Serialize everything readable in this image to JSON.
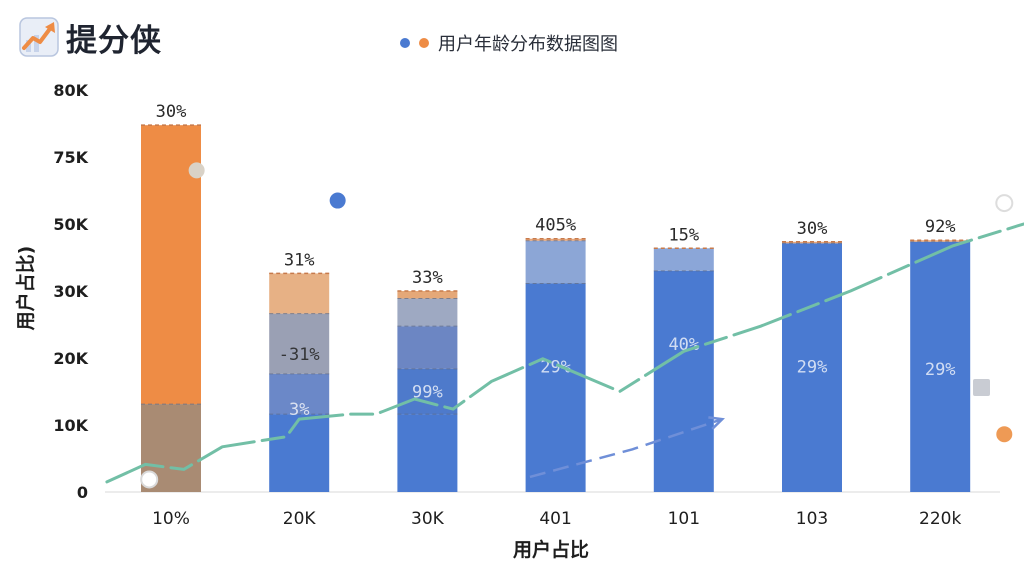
{
  "brand": {
    "name": "提分侠",
    "logo_icon": "trend-up-arrow-icon"
  },
  "colors": {
    "blue": "#4a7ad1",
    "orange": "#ee8c45",
    "trend": "#72bfa6",
    "arrow": "#6f8fd8"
  },
  "chart_data": {
    "type": "bar",
    "title": "用户年龄分布数据图图",
    "legend": {
      "placement": "top-center",
      "markers": [
        "#4a7ad1",
        "#ee8c45"
      ]
    },
    "xlabel": "用户占比",
    "ylabel": "用户占比)",
    "y_tick_labels": [
      "0",
      "10K",
      "20K",
      "30K",
      "50K",
      "75K",
      "80K"
    ],
    "categories": [
      "10%",
      "20K",
      "30K",
      "401",
      "101",
      "103",
      "220k"
    ],
    "bars": [
      {
        "category": "10%",
        "top_label": "30%",
        "inner_labels": [],
        "segments": [
          {
            "value": 17.5,
            "color": "#a98b73"
          },
          {
            "value": 55.5,
            "color": "#ee8c45"
          }
        ]
      },
      {
        "category": "20K",
        "top_label": "31%",
        "inner_labels": [
          {
            "text": "3%",
            "at": 16.5
          },
          {
            "text": "-31%",
            "at": 27.5,
            "dark": true
          }
        ],
        "segments": [
          {
            "value": 15.5,
            "color": "#4a7ad1"
          },
          {
            "value": 8.0,
            "color": "#6b88c8"
          },
          {
            "value": 12.0,
            "color": "#9aa0b4"
          },
          {
            "value": 8.0,
            "color": "#e7b185"
          }
        ]
      },
      {
        "category": "30K",
        "top_label": "33%",
        "inner_labels": [
          {
            "text": "99%",
            "at": 20.0
          }
        ],
        "segments": [
          {
            "value": 15.5,
            "color": "#4a7ad1"
          },
          {
            "value": 9.0,
            "color": "#4e7acb"
          },
          {
            "value": 8.5,
            "color": "#6c86c3"
          },
          {
            "value": 5.5,
            "color": "#9ea9c2"
          },
          {
            "value": 1.5,
            "color": "#e5a878"
          }
        ]
      },
      {
        "category": "401",
        "top_label": "405%",
        "inner_labels": [
          {
            "text": "29%",
            "at": 25.0
          }
        ],
        "segments": [
          {
            "value": 41.5,
            "color": "#4a7ad1"
          },
          {
            "value": 8.5,
            "color": "#8ca6d6"
          },
          {
            "value": 0.4,
            "color": "#e7a67a"
          }
        ]
      },
      {
        "category": "101",
        "top_label": "15%",
        "inner_labels": [
          {
            "text": "40%",
            "at": 29.5
          }
        ],
        "segments": [
          {
            "value": 44.0,
            "color": "#4a7ad1"
          },
          {
            "value": 4.5,
            "color": "#8ba6d8"
          }
        ]
      },
      {
        "category": "103",
        "top_label": "30%",
        "inner_labels": [
          {
            "text": "29%",
            "at": 25.0
          }
        ],
        "segments": [
          {
            "value": 49.5,
            "color": "#4a7ad1"
          },
          {
            "value": 0.3,
            "color": "#e7a67a"
          }
        ]
      },
      {
        "category": "220k",
        "top_label": "92%",
        "inner_labels": [
          {
            "text": "29%",
            "at": 24.5
          }
        ],
        "segments": [
          {
            "value": 49.8,
            "color": "#4a7ad1"
          },
          {
            "value": 0.3,
            "color": "#e7a67a"
          }
        ]
      }
    ],
    "trend_line": [
      {
        "x": -0.5,
        "y": 2.0
      },
      {
        "x": -0.2,
        "y": 5.5
      },
      {
        "x": 0.1,
        "y": 4.5
      },
      {
        "x": 0.4,
        "y": 9.0
      },
      {
        "x": 0.9,
        "y": 11.0
      },
      {
        "x": 1.0,
        "y": 14.5
      },
      {
        "x": 1.4,
        "y": 15.5
      },
      {
        "x": 1.6,
        "y": 15.5
      },
      {
        "x": 1.9,
        "y": 18.5
      },
      {
        "x": 2.2,
        "y": 16.5
      },
      {
        "x": 2.5,
        "y": 22.0
      },
      {
        "x": 2.9,
        "y": 26.5
      },
      {
        "x": 3.5,
        "y": 20.0
      },
      {
        "x": 4.0,
        "y": 28.0
      },
      {
        "x": 4.6,
        "y": 33.0
      },
      {
        "x": 5.3,
        "y": 40.0
      },
      {
        "x": 6.1,
        "y": 49.0
      },
      {
        "x": 6.8,
        "y": 54.5
      }
    ],
    "arrow_line": [
      {
        "x": 2.8,
        "y": 3.0
      },
      {
        "x": 3.6,
        "y": 8.5
      },
      {
        "x": 4.3,
        "y": 14.5
      }
    ],
    "decorations": [
      {
        "x": -0.17,
        "y": 2.5,
        "color": "#ffffff",
        "stroke": "#d9d9d9"
      },
      {
        "x": 0.2,
        "y": 64.0,
        "color": "#d9d2c7",
        "stroke": ""
      },
      {
        "x": 1.3,
        "y": 58.0,
        "color": "#4a7ad1",
        "stroke": ""
      },
      {
        "x": 6.5,
        "y": 57.5,
        "color": "#ffffff",
        "stroke": "#dddddd"
      },
      {
        "x": 6.5,
        "y": 11.5,
        "color": "#ee9a55",
        "stroke": ""
      }
    ],
    "ylim": [
      0,
      80
    ]
  }
}
